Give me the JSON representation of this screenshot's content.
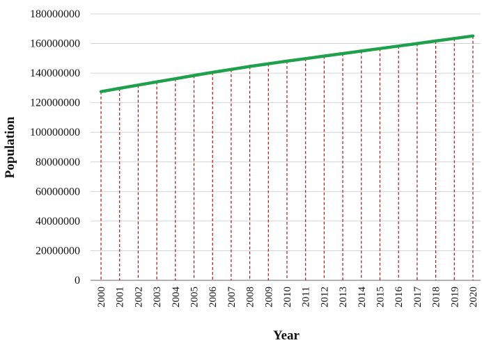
{
  "chart_data": {
    "type": "line",
    "title": "",
    "xlabel": "Year",
    "ylabel": "Population",
    "categories": [
      "2000",
      "2001",
      "2002",
      "2003",
      "2004",
      "2005",
      "2006",
      "2007",
      "2008",
      "2009",
      "2010",
      "2011",
      "2012",
      "2013",
      "2014",
      "2015",
      "2016",
      "2017",
      "2018",
      "2019",
      "2020"
    ],
    "series": [
      {
        "name": "",
        "values": [
          127500000,
          129700000,
          131900000,
          134100000,
          136200000,
          138400000,
          140500000,
          142500000,
          144500000,
          146300000,
          148100000,
          149800000,
          151500000,
          153200000,
          154900000,
          156600000,
          158300000,
          160000000,
          161700000,
          163400000,
          165100000
        ]
      }
    ],
    "ylim": [
      0,
      180000000
    ],
    "yticks": [
      "0",
      "20000000",
      "40000000",
      "60000000",
      "80000000",
      "100000000",
      "120000000",
      "140000000",
      "160000000",
      "180000000"
    ],
    "grid": "horizontal",
    "drop_lines": true,
    "legend": "none",
    "colors": {
      "line": "#1fa04a",
      "drop_line": "#a31515",
      "grid": "#d4d4d4",
      "axis": "#666666"
    }
  }
}
